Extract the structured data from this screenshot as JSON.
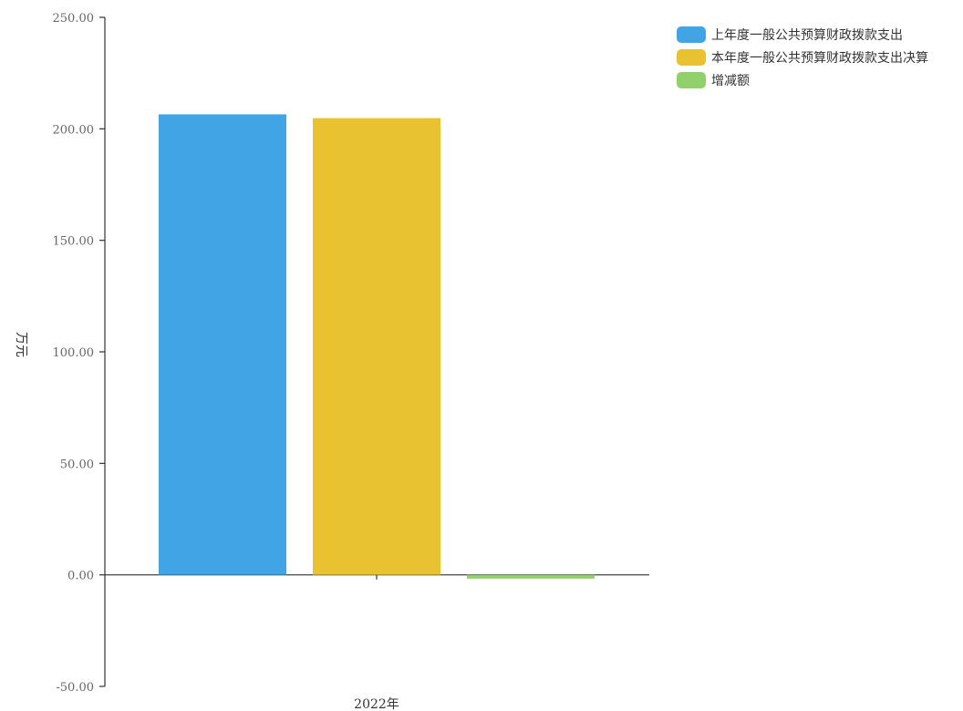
{
  "chart_data": {
    "type": "bar",
    "categories": [
      "2022年"
    ],
    "series": [
      {
        "name": "上年度一般公共预算财政拨款支出",
        "values": [
          206.5
        ],
        "color": "#41a4e5"
      },
      {
        "name": "本年度一般公共预算财政拨款支出决算",
        "values": [
          204.8
        ],
        "color": "#e9c232"
      },
      {
        "name": "增减额",
        "values": [
          -1.7
        ],
        "color": "#92d06b"
      }
    ],
    "title": "",
    "xlabel": "",
    "ylabel": "万元",
    "ylim": [
      -50,
      250
    ],
    "yticks": [
      -50,
      0,
      50,
      100,
      150,
      200,
      250
    ],
    "ytick_labels": [
      "-50.00",
      "0.00",
      "50.00",
      "100.00",
      "150.00",
      "200.00",
      "250.00"
    ],
    "grid": false,
    "legend": "top-right"
  }
}
